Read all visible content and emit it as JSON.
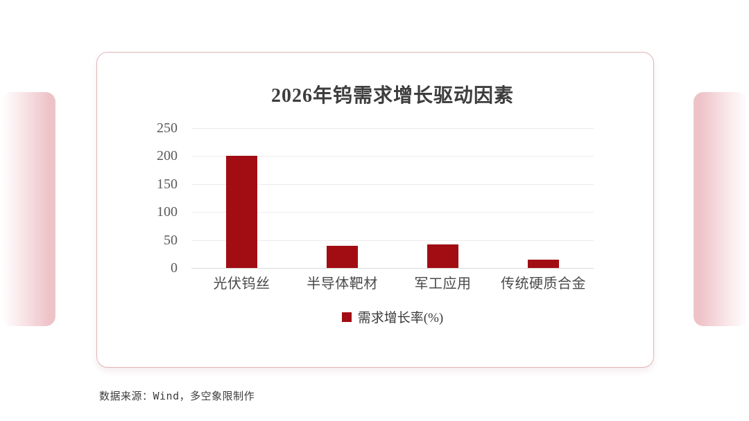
{
  "chart_data": {
    "type": "bar",
    "title": "2026年钨需求增长驱动因素",
    "categories": [
      "光伏钨丝",
      "半导体靶材",
      "军工应用",
      "传统硬质合金"
    ],
    "values": [
      200,
      40,
      42,
      15
    ],
    "series_name": "需求增长率(%)",
    "xlabel": "",
    "ylabel": "",
    "ylim": [
      0,
      250
    ],
    "yticks": [
      0,
      50,
      100,
      150,
      200,
      250
    ],
    "grid": true,
    "legend_position": "bottom",
    "bar_color": "#a10d13"
  },
  "legend": {
    "label": "需求增长率(%)"
  },
  "footer": {
    "source": "数据来源：Wind，多空象限制作"
  },
  "colors": {
    "bar": "#a10d13",
    "card_border": "#e3b3b8",
    "side_panel_pink": "#eec3c8",
    "gridline": "#ececec",
    "title_text": "#3d3d3d",
    "axis_text": "#595959"
  }
}
